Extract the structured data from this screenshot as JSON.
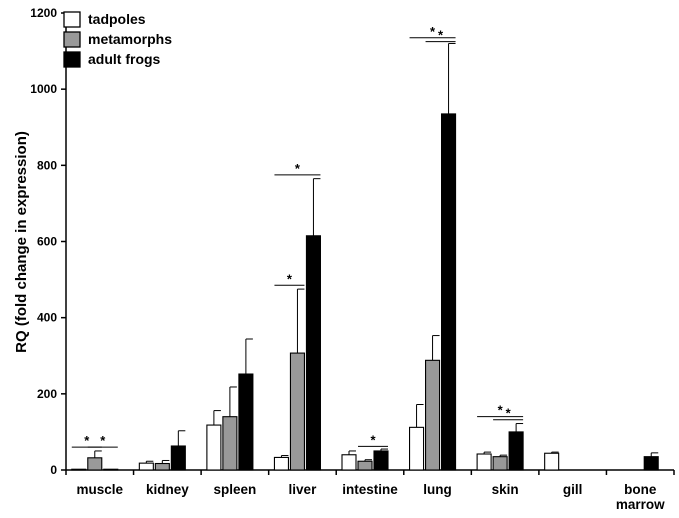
{
  "chart_data": {
    "type": "bar",
    "title": "",
    "xlabel": "",
    "ylabel": "RQ (fold change in expression)",
    "ylim": [
      0,
      1200
    ],
    "yticks": [
      0,
      200,
      400,
      600,
      800,
      1000,
      1200
    ],
    "grid": false,
    "legend_position": "top-left",
    "categories": [
      "muscle",
      "kidney",
      "spleen",
      "liver",
      "intestine",
      "lung",
      "skin",
      "gill",
      "bone marrow"
    ],
    "category_lines": [
      [
        "muscle"
      ],
      [
        "kidney"
      ],
      [
        "spleen"
      ],
      [
        "liver"
      ],
      [
        "intestine"
      ],
      [
        "lung"
      ],
      [
        "skin"
      ],
      [
        "gill"
      ],
      [
        "bone",
        "marrow"
      ]
    ],
    "series": [
      {
        "name": "tadpoles",
        "color": "#ffffff",
        "values": [
          2,
          18,
          118,
          33,
          40,
          112,
          42,
          44,
          null
        ],
        "errors": [
          0,
          5,
          38,
          5,
          10,
          60,
          5,
          3,
          null
        ]
      },
      {
        "name": "metamorphs",
        "color": "#999999",
        "values": [
          32,
          17,
          140,
          307,
          23,
          288,
          35,
          null,
          null
        ],
        "errors": [
          18,
          8,
          78,
          168,
          4,
          65,
          4,
          null,
          null
        ]
      },
      {
        "name": "adult frogs",
        "color": "#000000",
        "values": [
          2,
          63,
          252,
          615,
          50,
          935,
          100,
          null,
          35
        ],
        "errors": [
          0,
          40,
          92,
          150,
          5,
          185,
          22,
          null,
          10
        ]
      }
    ],
    "significance": [
      {
        "category": 0,
        "from_series": 0,
        "to_series": 1,
        "y": 60,
        "label": "*"
      },
      {
        "category": 0,
        "from_series": 1,
        "to_series": 2,
        "y": 60,
        "label": "*"
      },
      {
        "category": 3,
        "from_series": 0,
        "to_series": 1,
        "y": 485,
        "label": "*"
      },
      {
        "category": 3,
        "from_series": 0,
        "to_series": 2,
        "y": 775,
        "label": "*"
      },
      {
        "category": 4,
        "from_series": 1,
        "to_series": 2,
        "y": 62,
        "label": "*"
      },
      {
        "category": 5,
        "from_series": 1,
        "to_series": 2,
        "y": 1125,
        "label": "*"
      },
      {
        "category": 5,
        "from_series": 0,
        "to_series": 2,
        "y": 1135,
        "label": "*"
      },
      {
        "category": 6,
        "from_series": 1,
        "to_series": 2,
        "y": 132,
        "label": "*"
      },
      {
        "category": 6,
        "from_series": 0,
        "to_series": 2,
        "y": 140,
        "label": "*"
      }
    ]
  }
}
